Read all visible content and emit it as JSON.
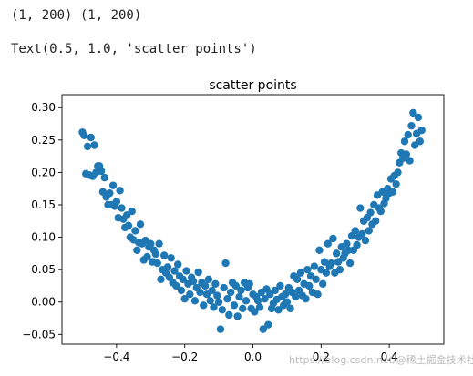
{
  "output": {
    "line1": "(1, 200) (1, 200)",
    "line2": "Text(0.5, 1.0, 'scatter points')"
  },
  "watermark": "https://blog.csdn.net/@稀土掘金技术社区",
  "chart_data": {
    "type": "scatter",
    "title": "scatter points",
    "xlabel": "",
    "ylabel": "",
    "xlim": [
      -0.56,
      0.56
    ],
    "ylim": [
      -0.065,
      0.32
    ],
    "xticks": [
      -0.4,
      -0.2,
      0.0,
      0.2,
      0.4
    ],
    "xtick_labels": [
      "−0.4",
      "−0.2",
      "0.0",
      "0.2",
      "0.4"
    ],
    "yticks": [
      -0.05,
      0.0,
      0.05,
      0.1,
      0.15,
      0.2,
      0.25,
      0.3
    ],
    "ytick_labels": [
      "−0.05",
      "0.00",
      "0.05",
      "0.10",
      "0.15",
      "0.20",
      "0.25",
      "0.30"
    ],
    "grid": false,
    "color": "#1f77b4",
    "series": [
      {
        "points": [
          [
            -0.5,
            0.262
          ],
          [
            -0.495,
            0.257
          ],
          [
            -0.49,
            0.198
          ],
          [
            -0.485,
            0.24
          ],
          [
            -0.48,
            0.196
          ],
          [
            -0.475,
            0.254
          ],
          [
            -0.47,
            0.194
          ],
          [
            -0.465,
            0.242
          ],
          [
            -0.46,
            0.2
          ],
          [
            -0.455,
            0.21
          ],
          [
            -0.45,
            0.21
          ],
          [
            -0.445,
            0.202
          ],
          [
            -0.44,
            0.17
          ],
          [
            -0.435,
            0.192
          ],
          [
            -0.43,
            0.162
          ],
          [
            -0.425,
            0.15
          ],
          [
            -0.42,
            0.168
          ],
          [
            -0.415,
            0.15
          ],
          [
            -0.41,
            0.18
          ],
          [
            -0.405,
            0.148
          ],
          [
            -0.4,
            0.155
          ],
          [
            -0.395,
            0.13
          ],
          [
            -0.39,
            0.172
          ],
          [
            -0.385,
            0.145
          ],
          [
            -0.38,
            0.128
          ],
          [
            -0.375,
            0.115
          ],
          [
            -0.37,
            0.134
          ],
          [
            -0.365,
            0.118
          ],
          [
            -0.36,
            0.1
          ],
          [
            -0.355,
            0.14
          ],
          [
            -0.35,
            0.096
          ],
          [
            -0.345,
            0.11
          ],
          [
            -0.34,
            0.08
          ],
          [
            -0.335,
            0.092
          ],
          [
            -0.33,
            0.12
          ],
          [
            -0.325,
            0.09
          ],
          [
            -0.32,
            0.065
          ],
          [
            -0.315,
            0.095
          ],
          [
            -0.31,
            0.07
          ],
          [
            -0.305,
            0.085
          ],
          [
            -0.3,
            0.09
          ],
          [
            -0.295,
            0.062
          ],
          [
            -0.29,
            0.08
          ],
          [
            -0.285,
            0.074
          ],
          [
            -0.28,
            0.06
          ],
          [
            -0.275,
            0.09
          ],
          [
            -0.27,
            0.035
          ],
          [
            -0.265,
            0.05
          ],
          [
            -0.26,
            0.072
          ],
          [
            -0.255,
            0.045
          ],
          [
            -0.25,
            0.054
          ],
          [
            -0.245,
            0.038
          ],
          [
            -0.24,
            0.068
          ],
          [
            -0.235,
            0.03
          ],
          [
            -0.23,
            0.048
          ],
          [
            -0.225,
            0.025
          ],
          [
            -0.22,
            0.058
          ],
          [
            -0.215,
            0.04
          ],
          [
            -0.21,
            0.018
          ],
          [
            -0.205,
            0.035
          ],
          [
            -0.2,
            0.005
          ],
          [
            -0.195,
            0.048
          ],
          [
            -0.19,
            0.028
          ],
          [
            -0.185,
            0.012
          ],
          [
            -0.18,
            0.038
          ],
          [
            -0.175,
            0.032
          ],
          [
            -0.17,
            0.002
          ],
          [
            -0.165,
            0.022
          ],
          [
            -0.16,
            0.046
          ],
          [
            -0.155,
            0.015
          ],
          [
            -0.15,
            0.03
          ],
          [
            -0.145,
            -0.005
          ],
          [
            -0.14,
            0.025
          ],
          [
            -0.135,
            0.012
          ],
          [
            -0.13,
            0.035
          ],
          [
            -0.125,
            0.002
          ],
          [
            -0.12,
            0.018
          ],
          [
            -0.115,
            -0.008
          ],
          [
            -0.11,
            0.028
          ],
          [
            -0.105,
            0.01
          ],
          [
            -0.1,
            0.0
          ],
          [
            -0.095,
            -0.042
          ],
          [
            -0.09,
            -0.012
          ],
          [
            -0.085,
            0.022
          ],
          [
            -0.08,
            0.06
          ],
          [
            -0.075,
            0.005
          ],
          [
            -0.07,
            -0.02
          ],
          [
            -0.065,
            0.015
          ],
          [
            -0.06,
            0.03
          ],
          [
            -0.055,
            -0.005
          ],
          [
            -0.05,
            0.025
          ],
          [
            -0.045,
            -0.022
          ],
          [
            -0.04,
            0.008
          ],
          [
            -0.035,
            0.018
          ],
          [
            -0.03,
            -0.01
          ],
          [
            -0.025,
            0.03
          ],
          [
            -0.02,
            0.002
          ],
          [
            -0.015,
            0.022
          ],
          [
            -0.01,
            0.028
          ],
          [
            -0.005,
            -0.01
          ],
          [
            0.0,
            0.012
          ],
          [
            0.005,
            -0.015
          ],
          [
            0.01,
            0.008
          ],
          [
            0.015,
            0.002
          ],
          [
            0.02,
            -0.008
          ],
          [
            0.025,
            0.015
          ],
          [
            0.03,
            -0.042
          ],
          [
            0.035,
            0.005
          ],
          [
            0.04,
            0.02
          ],
          [
            0.045,
            -0.035
          ],
          [
            0.05,
            0.012
          ],
          [
            0.055,
            -0.01
          ],
          [
            0.06,
            -0.002
          ],
          [
            0.065,
            0.018
          ],
          [
            0.07,
            0.004
          ],
          [
            0.075,
            -0.012
          ],
          [
            0.08,
            0.025
          ],
          [
            0.085,
            0.008
          ],
          [
            0.09,
            -0.005
          ],
          [
            0.095,
            0.012
          ],
          [
            0.1,
            0.0
          ],
          [
            0.105,
            0.022
          ],
          [
            0.11,
            -0.01
          ],
          [
            0.115,
            0.015
          ],
          [
            0.12,
            0.04
          ],
          [
            0.125,
            0.008
          ],
          [
            0.13,
            0.035
          ],
          [
            0.135,
            0.018
          ],
          [
            0.14,
            0.045
          ],
          [
            0.145,
            0.01
          ],
          [
            0.15,
            0.028
          ],
          [
            0.155,
            0.005
          ],
          [
            0.16,
            0.05
          ],
          [
            0.165,
            0.025
          ],
          [
            0.17,
            0.04
          ],
          [
            0.175,
            0.015
          ],
          [
            0.18,
            0.055
          ],
          [
            0.185,
            0.035
          ],
          [
            0.19,
            0.012
          ],
          [
            0.195,
            0.08
          ],
          [
            0.2,
            0.05
          ],
          [
            0.205,
            0.028
          ],
          [
            0.21,
            0.062
          ],
          [
            0.215,
            0.045
          ],
          [
            0.22,
            0.09
          ],
          [
            0.225,
            0.055
          ],
          [
            0.23,
            0.06
          ],
          [
            0.235,
            0.098
          ],
          [
            0.24,
            0.045
          ],
          [
            0.245,
            0.075
          ],
          [
            0.25,
            0.062
          ],
          [
            0.255,
            0.05
          ],
          [
            0.26,
            0.085
          ],
          [
            0.265,
            0.068
          ],
          [
            0.27,
            0.075
          ],
          [
            0.275,
            0.09
          ],
          [
            0.28,
            0.08
          ],
          [
            0.285,
            0.06
          ],
          [
            0.29,
            0.102
          ],
          [
            0.295,
            0.08
          ],
          [
            0.3,
            0.11
          ],
          [
            0.305,
            0.088
          ],
          [
            0.31,
            0.1
          ],
          [
            0.315,
            0.145
          ],
          [
            0.32,
            0.105
          ],
          [
            0.325,
            0.125
          ],
          [
            0.33,
            0.095
          ],
          [
            0.335,
            0.13
          ],
          [
            0.34,
            0.11
          ],
          [
            0.345,
            0.138
          ],
          [
            0.35,
            0.12
          ],
          [
            0.355,
            0.15
          ],
          [
            0.36,
            0.125
          ],
          [
            0.365,
            0.165
          ],
          [
            0.37,
            0.145
          ],
          [
            0.375,
            0.14
          ],
          [
            0.38,
            0.17
          ],
          [
            0.385,
            0.152
          ],
          [
            0.39,
            0.16
          ],
          [
            0.395,
            0.175
          ],
          [
            0.4,
            0.168
          ],
          [
            0.405,
            0.19
          ],
          [
            0.41,
            0.17
          ],
          [
            0.415,
            0.195
          ],
          [
            0.42,
            0.182
          ],
          [
            0.425,
            0.2
          ],
          [
            0.43,
            0.215
          ],
          [
            0.435,
            0.23
          ],
          [
            0.44,
            0.222
          ],
          [
            0.445,
            0.248
          ],
          [
            0.45,
            0.228
          ],
          [
            0.455,
            0.258
          ],
          [
            0.46,
            0.218
          ],
          [
            0.465,
            0.272
          ],
          [
            0.47,
            0.292
          ],
          [
            0.475,
            0.242
          ],
          [
            0.48,
            0.26
          ],
          [
            0.485,
            0.285
          ],
          [
            0.49,
            0.248
          ],
          [
            0.495,
            0.265
          ]
        ]
      }
    ]
  }
}
